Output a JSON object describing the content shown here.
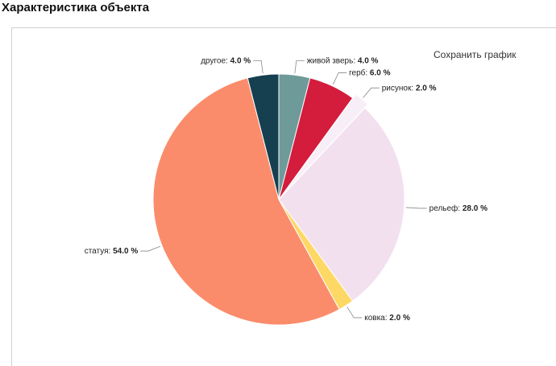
{
  "page": {
    "title": "Характеристика объекта"
  },
  "toolbar": {
    "save_label": "Сохранить график"
  },
  "chart_data": {
    "type": "pie",
    "start_angle_deg": -90,
    "direction": "clockwise",
    "slices": [
      {
        "label": "живой зверь",
        "value": 4.0,
        "text": "4.0 %",
        "color": "#6e9a9a"
      },
      {
        "label": "герб",
        "value": 6.0,
        "text": "6.0 %",
        "color": "#d41c3c"
      },
      {
        "label": "рисунок",
        "value": 2.0,
        "text": "2.0 %",
        "color": "#f7eef7"
      },
      {
        "label": "рельеф",
        "value": 28.0,
        "text": "28.0 %",
        "color": "#f2e0ef"
      },
      {
        "label": "ковка",
        "value": 2.0,
        "text": "2.0 %",
        "color": "#fdd865"
      },
      {
        "label": "статуя",
        "value": 54.0,
        "text": "54.0 %",
        "color": "#fb8c6b"
      },
      {
        "label": "другое",
        "value": 4.0,
        "text": "4.0 %",
        "color": "#163f50"
      }
    ]
  }
}
